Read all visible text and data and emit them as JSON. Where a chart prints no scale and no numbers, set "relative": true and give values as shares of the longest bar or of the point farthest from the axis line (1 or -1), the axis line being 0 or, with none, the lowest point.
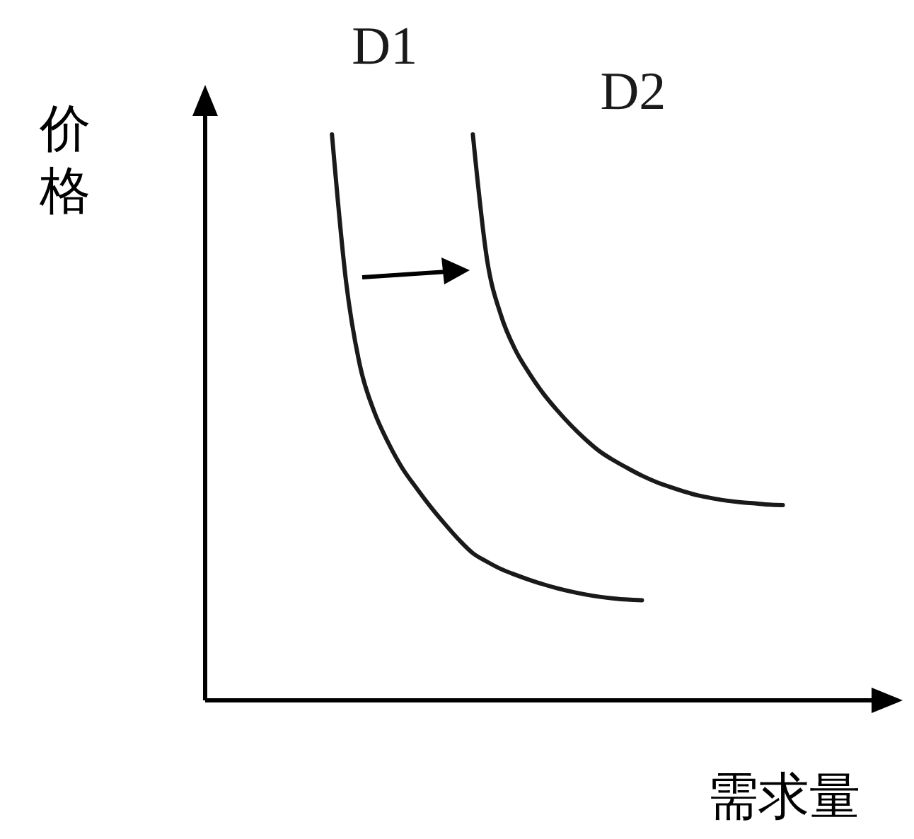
{
  "chart_data": {
    "type": "line",
    "relative": true,
    "xlabel": "需求量",
    "ylabel": "价格",
    "legend": false,
    "marker": "none",
    "line_style": "solid",
    "categories": [
      null,
      null,
      null,
      null,
      null,
      null,
      null,
      null,
      null,
      null,
      null,
      null,
      null,
      null,
      null,
      null,
      null,
      null,
      null,
      null,
      null,
      null,
      null,
      null,
      null,
      null,
      null,
      null,
      null,
      null,
      null,
      null,
      null,
      null,
      null,
      null,
      null,
      null,
      null,
      null,
      null,
      null,
      null,
      null,
      null,
      null,
      null,
      null
    ],
    "series": [
      {
        "name": "D1",
        "color": "#1a1a1a",
        "values": [
          null,
          null,
          null,
          null,
          null,
          null,
          null,
          null,
          1.0,
          0.74,
          0.59,
          0.51,
          0.455,
          0.41,
          0.375,
          0.342,
          0.312,
          0.284,
          0.26,
          0.245,
          0.232,
          0.222,
          0.213,
          0.205,
          0.198,
          0.192,
          0.187,
          0.183,
          0.18,
          0.178,
          0.177,
          null,
          null,
          null,
          null,
          null,
          null,
          null,
          null,
          null,
          null,
          null,
          null,
          null,
          null,
          null,
          null,
          null
        ]
      },
      {
        "name": "D2",
        "color": "#1a1a1a",
        "values": [
          null,
          null,
          null,
          null,
          null,
          null,
          null,
          null,
          null,
          null,
          null,
          null,
          null,
          null,
          null,
          null,
          null,
          null,
          1.0,
          0.78,
          0.68,
          0.62,
          0.578,
          0.542,
          0.512,
          0.485,
          0.461,
          0.44,
          0.424,
          0.41,
          0.397,
          0.386,
          0.377,
          0.369,
          0.362,
          0.357,
          0.353,
          0.35,
          0.348,
          0.346,
          0.345,
          null,
          null,
          null,
          null,
          null,
          null,
          null
        ]
      }
    ]
  }
}
